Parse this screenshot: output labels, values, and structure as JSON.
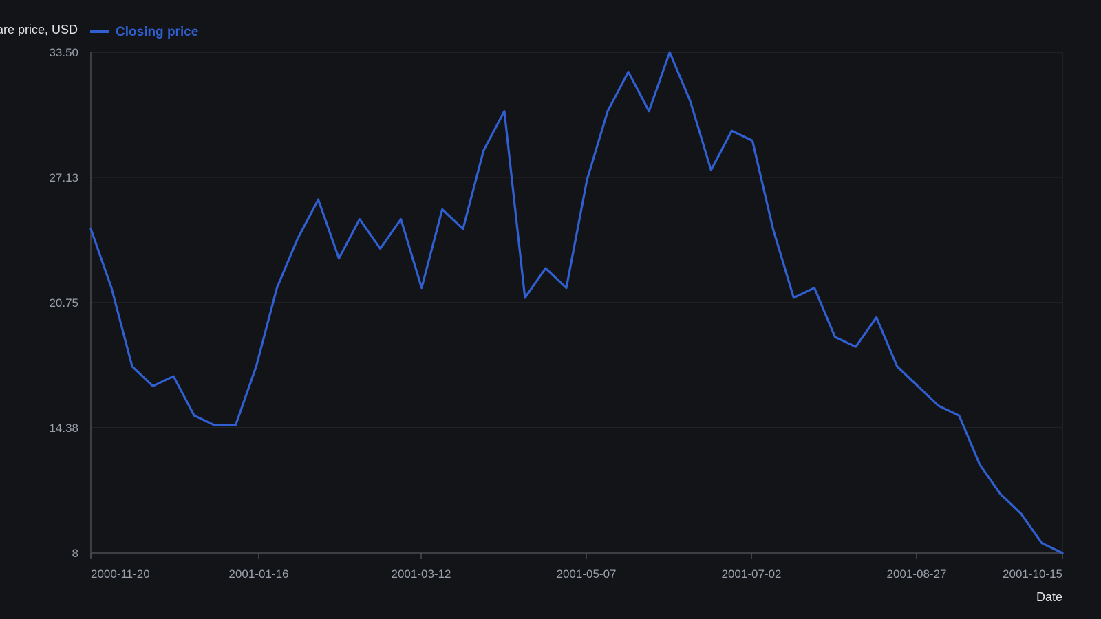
{
  "chart_data": {
    "type": "line",
    "ylabel": "Share price, USD",
    "xlabel": "Date",
    "legend_placement": "top-left",
    "grid": true,
    "ylim": [
      8,
      33.5
    ],
    "y_ticks": [
      "8",
      "14.38",
      "20.75",
      "27.13",
      "33.50"
    ],
    "x_ticks": [
      "2000-11-20",
      "2001-01-16",
      "2001-03-12",
      "2001-05-07",
      "2001-07-02",
      "2001-08-27",
      "2001-10-15"
    ],
    "series": [
      {
        "name": "Closing price",
        "color": "#2f5fd0",
        "values": [
          24.5,
          21.5,
          17.5,
          16.5,
          17.0,
          15.0,
          14.5,
          14.5,
          17.5,
          21.5,
          24.0,
          26.0,
          23.0,
          25.0,
          23.5,
          25.0,
          21.5,
          25.5,
          24.5,
          28.5,
          30.5,
          21.0,
          22.5,
          21.5,
          27.0,
          30.5,
          32.5,
          30.5,
          33.5,
          31.0,
          27.5,
          29.5,
          29.0,
          24.5,
          21.0,
          21.5,
          19.0,
          18.5,
          20.0,
          17.5,
          16.5,
          15.5,
          15.0,
          12.5,
          11.0,
          10.0,
          8.5,
          8.0
        ]
      }
    ]
  }
}
